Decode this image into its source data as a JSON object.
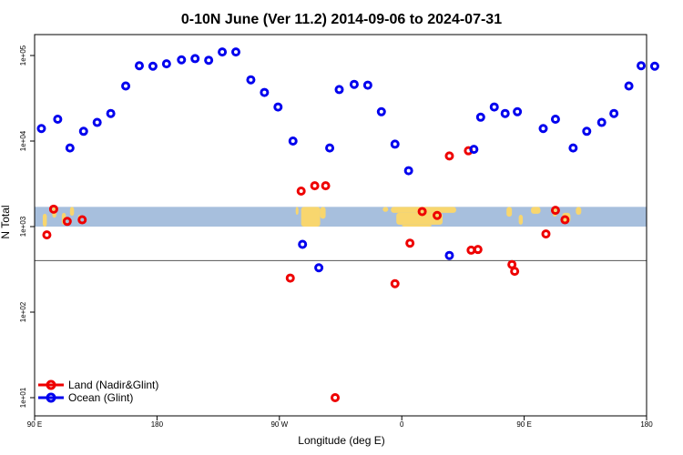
{
  "chart_data": {
    "type": "scatter",
    "title": "0-10N June (Ver 11.2)   2014-09-06 to 2024-07-31",
    "xlabel": "Longitude (deg E)",
    "ylabel": "N Total",
    "y_scale": "log",
    "ylim": [
      10,
      150000
    ],
    "x_ticks": [
      {
        "value": 90,
        "label": "90 E"
      },
      {
        "value": 180,
        "label": "180"
      },
      {
        "value": 270,
        "label": "90 W"
      },
      {
        "value": 360,
        "label": "0"
      },
      {
        "value": 450,
        "label": "90 E"
      },
      {
        "value": 540,
        "label": "180"
      }
    ],
    "y_ticks": [
      {
        "value": 10,
        "label": "1e+01"
      },
      {
        "value": 100,
        "label": "1e+02"
      },
      {
        "value": 1000,
        "label": "1e+03"
      },
      {
        "value": 10000,
        "label": "1e+04"
      },
      {
        "value": 100000,
        "label": "1e+05"
      }
    ],
    "reference_line": 400,
    "legend_position": "bottom-left",
    "series": [
      {
        "name": "Land (Nadir&Glint)",
        "color": "#ee0000",
        "x": [
          99,
          104,
          114,
          125,
          278,
          286,
          296,
          304,
          311,
          355,
          366,
          375,
          386,
          395,
          409,
          411,
          416,
          441,
          443,
          466,
          473,
          480
        ],
        "y": [
          800,
          1600,
          1150,
          1200,
          250,
          2600,
          3000,
          3000,
          10,
          215,
          640,
          1500,
          1350,
          6700,
          7700,
          530,
          540,
          360,
          300,
          820,
          1550,
          1200
        ]
      },
      {
        "name": "Ocean (Glint)",
        "color": "#0000ee",
        "x": [
          95,
          107,
          116,
          126,
          136,
          146,
          157,
          167,
          177,
          187,
          198,
          208,
          218,
          228,
          238,
          249,
          259,
          269,
          280,
          287,
          299,
          307,
          314,
          325,
          335,
          345,
          355,
          365,
          395,
          413,
          418,
          428,
          436,
          445,
          464,
          473,
          486,
          496,
          507,
          516,
          527,
          536,
          546
        ],
        "y": [
          14000,
          18000,
          8300,
          13000,
          16500,
          21000,
          44000,
          76000,
          75000,
          80000,
          89000,
          92000,
          88000,
          110000,
          110000,
          52000,
          37000,
          25000,
          10000,
          620,
          330,
          8300,
          40000,
          46000,
          45000,
          22000,
          9200,
          4500,
          460,
          8000,
          19000,
          25000,
          21000,
          22000,
          14000,
          18000,
          8300,
          13000,
          16500,
          21000,
          44000,
          76000,
          75000
        ]
      }
    ]
  },
  "map_band": {
    "top_value": 1700,
    "bottom_value": 1000,
    "ocean_color": "#a7bfdd",
    "land_color": "#f8d66e"
  }
}
